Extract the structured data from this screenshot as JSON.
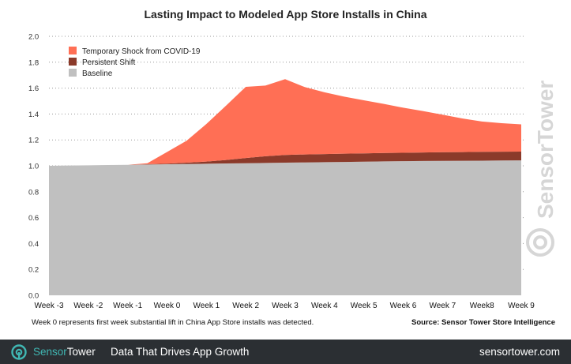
{
  "chart_data": {
    "type": "area",
    "stacked": true,
    "title": "Lasting Impact to Modeled App Store Installs in China",
    "categories": [
      "Week -3",
      "Week -2",
      "Week -1",
      "Week 0",
      "Week 1",
      "Week 2",
      "Week 3",
      "Week 4",
      "Week 5",
      "Week 6",
      "Week 7",
      "Week8",
      "Week 9"
    ],
    "x": [
      -3,
      -2.5,
      -2,
      -1.5,
      -1,
      -0.5,
      0,
      0.5,
      1,
      1.5,
      2,
      2.5,
      3,
      3.5,
      4,
      4.5,
      5,
      5.5,
      6,
      6.5,
      7,
      7.5,
      8,
      8.5,
      9
    ],
    "series": [
      {
        "name": "Baseline",
        "color": "#c0c0c0",
        "values": [
          1.0,
          1.002,
          1.004,
          1.006,
          1.008,
          1.01,
          1.012,
          1.014,
          1.016,
          1.018,
          1.02,
          1.022,
          1.024,
          1.026,
          1.028,
          1.03,
          1.032,
          1.034,
          1.036,
          1.037,
          1.038,
          1.039,
          1.04,
          1.041,
          1.042
        ]
      },
      {
        "name": "Persistent Shift",
        "color": "#8b3a2a",
        "values": [
          0,
          0,
          0,
          0,
          0,
          0.002,
          0.005,
          0.01,
          0.017,
          0.027,
          0.04,
          0.052,
          0.06,
          0.062,
          0.063,
          0.064,
          0.064,
          0.065,
          0.065,
          0.066,
          0.067,
          0.067,
          0.068,
          0.068,
          0.068
        ]
      },
      {
        "name": "Temporary Shock from COVID-19",
        "color": "#ff6f55",
        "values": [
          0,
          0,
          0,
          0,
          0,
          0.008,
          0.09,
          0.17,
          0.29,
          0.42,
          0.55,
          0.546,
          0.585,
          0.52,
          0.477,
          0.44,
          0.41,
          0.38,
          0.348,
          0.32,
          0.29,
          0.26,
          0.234,
          0.22,
          0.21
        ]
      }
    ],
    "ylim": [
      0,
      2.0
    ],
    "yticks": [
      0.0,
      0.2,
      0.4,
      0.6,
      0.8,
      1.0,
      1.2,
      1.4,
      1.6,
      1.8,
      2.0
    ],
    "ytick_labels": [
      "0.0",
      "0.2",
      "0.4",
      "0.6",
      "0.8",
      "1.0",
      "1.2",
      "1.4",
      "1.6",
      "1.8",
      "2.0"
    ],
    "xlabel": "",
    "ylabel": "",
    "grid": "horizontal dotted",
    "legend": [
      {
        "label": "Temporary Shock from COVID-19",
        "color": "#ff6f55"
      },
      {
        "label": "Persistent Shift",
        "color": "#8b3a2a"
      },
      {
        "label": "Baseline",
        "color": "#c0c0c0"
      }
    ],
    "legend_position": "top-left"
  },
  "footnote": "Week 0 represents first week substantial lift in China App Store installs was detected.",
  "source": "Source: Sensor Tower Store Intelligence",
  "watermark": "SensorTower",
  "footer": {
    "brand_part1": "Sensor",
    "brand_part2": "Tower",
    "tagline": "Data That Drives App Growth",
    "url": "sensortower.com",
    "accent_color": "#40b7b3",
    "logo_icon": "sensortower-logo-icon"
  }
}
